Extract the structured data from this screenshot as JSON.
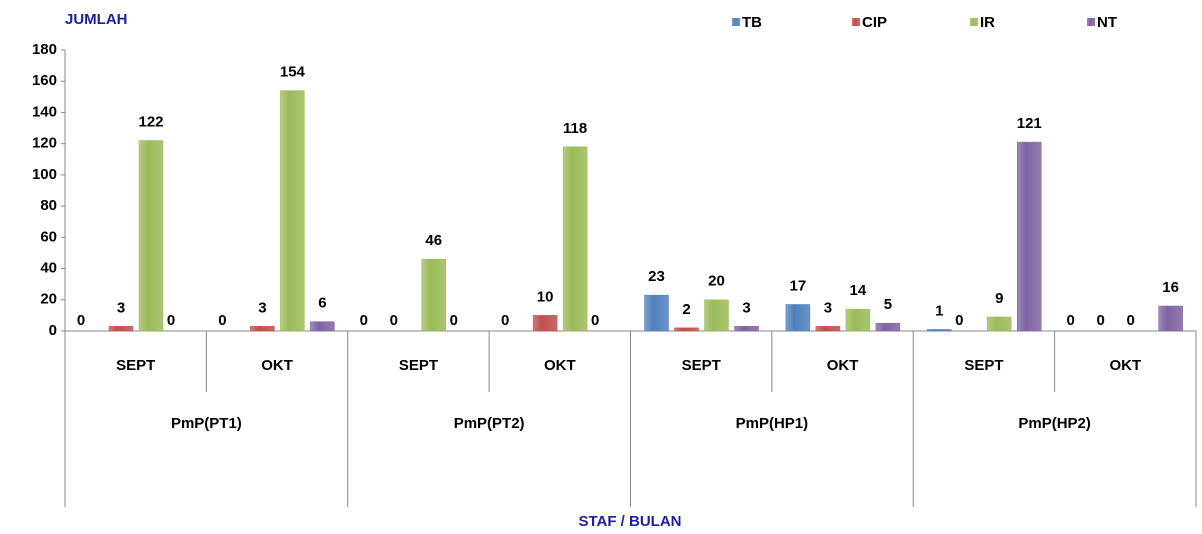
{
  "chart_data": {
    "type": "bar",
    "y_label": "JUMLAH",
    "x_label": "STAF / BULAN",
    "categories": [
      "SEPT",
      "OKT",
      "SEPT",
      "OKT",
      "SEPT",
      "OKT",
      "SEPT",
      "OKT"
    ],
    "groups": [
      "PmP(PT1)",
      "PmP(PT2)",
      "PmP(HP1)",
      "PmP(HP2)"
    ],
    "series": [
      {
        "name": "TB",
        "color": "#4f81bd",
        "values": [
          0,
          0,
          0,
          0,
          23,
          17,
          1,
          0
        ]
      },
      {
        "name": "CIP",
        "color": "#c0504d",
        "values": [
          3,
          3,
          0,
          10,
          2,
          3,
          0,
          0
        ]
      },
      {
        "name": "IR",
        "color": "#9bbb59",
        "values": [
          122,
          154,
          46,
          118,
          20,
          14,
          9,
          0
        ]
      },
      {
        "name": "NT",
        "color": "#8064a2",
        "values": [
          0,
          6,
          0,
          0,
          3,
          5,
          121,
          16
        ]
      }
    ],
    "ylim": [
      0,
      180
    ],
    "yticks": [
      0,
      20,
      40,
      60,
      80,
      100,
      120,
      140,
      160,
      180
    ],
    "legend": "top-right"
  }
}
